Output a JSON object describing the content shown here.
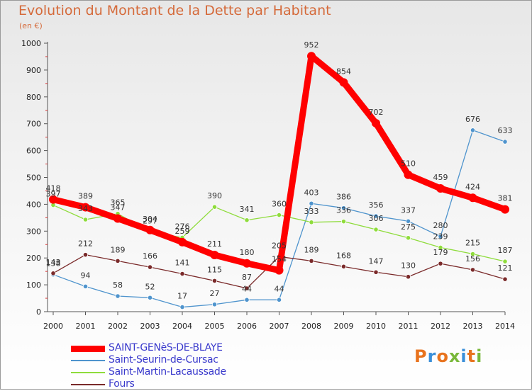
{
  "title": "Evolution du Montant de la Dette par Habitant",
  "subtitle": "(en €)",
  "logo": "Proxiti",
  "chart_data": {
    "type": "line",
    "x": [
      "2000",
      "2001",
      "2002",
      "2003",
      "2004",
      "2005",
      "2006",
      "2007",
      "2008",
      "2009",
      "2010",
      "2011",
      "2012",
      "2013",
      "2014"
    ],
    "ylim": [
      0,
      1000
    ],
    "yticks": [
      "0",
      "100",
      "200",
      "300",
      "400",
      "500",
      "600",
      "700",
      "800",
      "900",
      "1000"
    ],
    "grid": false,
    "legend_position": "bottom-left",
    "series": [
      {
        "name": "SAINT-GENèS-DE-BLAYE",
        "color": "#ff0000",
        "values": [
          418,
          389,
          347,
          304,
          259,
          211,
          180,
          154,
          952,
          854,
          702,
          510,
          459,
          424,
          381
        ]
      },
      {
        "name": "Saint-Seurin-de-Cursac",
        "color": "#4f94cd",
        "values": [
          138,
          94,
          58,
          52,
          17,
          27,
          44,
          44,
          403,
          386,
          356,
          337,
          280,
          676,
          633
        ]
      },
      {
        "name": "Saint-Martin-Lacaussade",
        "color": "#8fdc3c",
        "values": [
          397,
          343,
          365,
          297,
          276,
          390,
          341,
          360,
          333,
          336,
          306,
          275,
          239,
          215,
          187
        ]
      },
      {
        "name": "Fours",
        "color": "#7a2a2a",
        "values": [
          143,
          212,
          189,
          166,
          141,
          115,
          87,
          205,
          189,
          168,
          147,
          130,
          179,
          156,
          121
        ]
      }
    ]
  }
}
